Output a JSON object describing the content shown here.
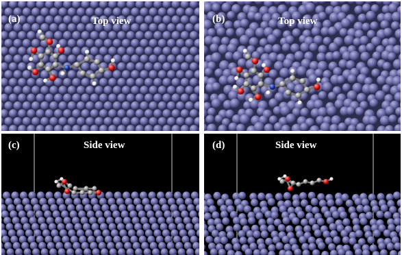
{
  "panels": [
    {
      "label": "(a)",
      "title": "Top view"
    },
    {
      "label": "(b)",
      "title": "Top view"
    },
    {
      "label": "(c)",
      "title": "Side view"
    },
    {
      "label": "(d)",
      "title": "Side view"
    }
  ],
  "colors": {
    "atom": "#6b6ba8",
    "atom_dark": "#2a2a50",
    "atom_light": "#b0b0dc",
    "carbon": "#9a9a9a",
    "oxygen": "#d11818",
    "hydrogen": "#ffffff",
    "nitrogen": "#1a3aa8",
    "background_side": "#000000"
  }
}
